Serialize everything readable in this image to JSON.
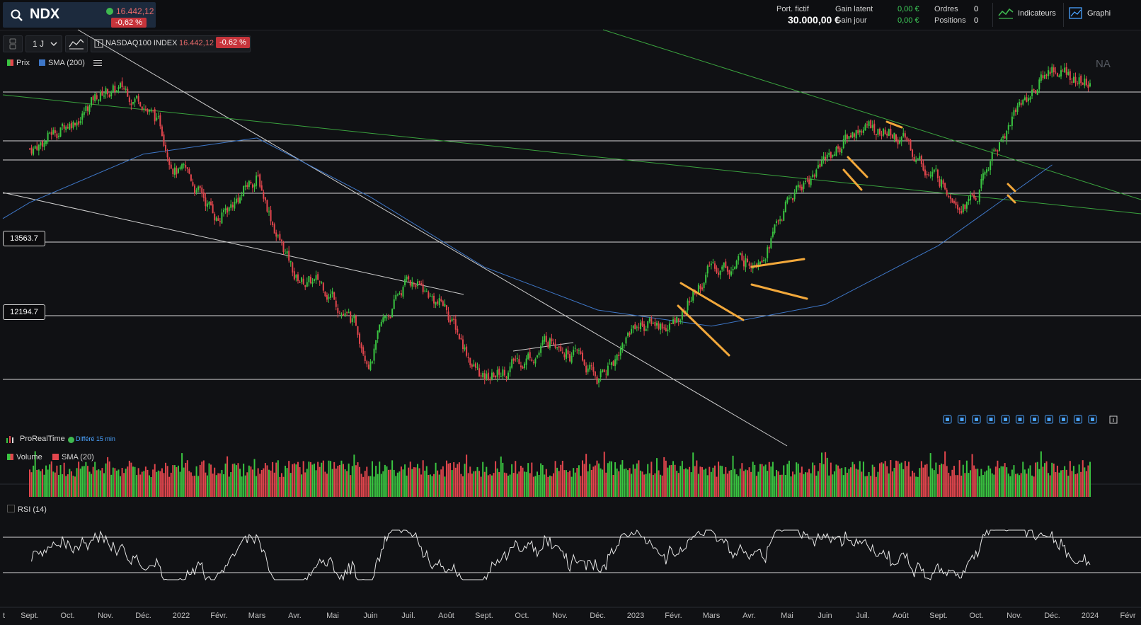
{
  "header": {
    "symbol": "NDX",
    "price": "16.442,12",
    "change": "-0,62 %",
    "portfolio_label": "Port. fictif",
    "portfolio_value": "30.000,00 €",
    "gain_latent_label": "Gain latent",
    "gain_latent_value": "0,00 €",
    "gain_jour_label": "Gain jour",
    "gain_jour_value": "0,00 €",
    "ordres_label": "Ordres",
    "ordres_value": "0",
    "positions_label": "Positions",
    "positions_value": "0",
    "indicators_label": "Indicateurs",
    "graph_label": "Graphi"
  },
  "toolbar": {
    "timeframe": "1 J",
    "instrument_name": "NASDAQ100 INDEX",
    "instrument_price": "16.442,12",
    "instrument_change": "-0.62 %"
  },
  "legends": {
    "price": "Prix",
    "sma200": "SMA (200)",
    "volume": "Volume",
    "sma20": "SMA (20)",
    "rsi": "RSI (14)",
    "corner_text": "NA"
  },
  "provider": {
    "name": "ProRealTime",
    "delay": "Différé 15 min"
  },
  "price_labels": [
    "13563.7",
    "12194.7"
  ],
  "x_ticks": [
    "t",
    "Sept.",
    "Oct.",
    "Nov.",
    "Déc.",
    "2022",
    "Févr.",
    "Mars",
    "Avr.",
    "Mai",
    "Juin",
    "Juil.",
    "Août",
    "Sept.",
    "Oct.",
    "Nov.",
    "Déc.",
    "2023",
    "Févr.",
    "Mars",
    "Avr.",
    "Mai",
    "Juin",
    "Juil.",
    "Août",
    "Sept.",
    "Oct.",
    "Nov.",
    "Déc.",
    "2024",
    "Févr"
  ],
  "colors": {
    "up": "#3ac441",
    "down": "#e2464d",
    "sma200": "#3e77c8",
    "trend_green": "#3aa23e",
    "pattern": "#f2a83b",
    "accent_red": "#c7343b"
  },
  "chart_data": {
    "type": "candlestick",
    "title": "NASDAQ100 INDEX",
    "period": "1 J",
    "last_close": 16442.12,
    "horizontal_levels": [
      13563.7,
      12194.7
    ],
    "closes_monthly_approx": [
      {
        "x": "2021-09",
        "y": 15300
      },
      {
        "x": "2021-10",
        "y": 15800
      },
      {
        "x": "2021-11",
        "y": 16400
      },
      {
        "x": "2021-12",
        "y": 16300
      },
      {
        "x": "2022-01",
        "y": 14900
      },
      {
        "x": "2022-02",
        "y": 14000
      },
      {
        "x": "2022-03",
        "y": 14800
      },
      {
        "x": "2022-04",
        "y": 12900
      },
      {
        "x": "2022-05",
        "y": 12650
      },
      {
        "x": "2022-06",
        "y": 11500
      },
      {
        "x": "2022-07",
        "y": 12900
      },
      {
        "x": "2022-08",
        "y": 12300
      },
      {
        "x": "2022-09",
        "y": 10950
      },
      {
        "x": "2022-10",
        "y": 11400
      },
      {
        "x": "2022-11",
        "y": 11900
      },
      {
        "x": "2022-12",
        "y": 10950
      },
      {
        "x": "2023-01",
        "y": 12100
      },
      {
        "x": "2023-02",
        "y": 12050
      },
      {
        "x": "2023-03",
        "y": 13100
      },
      {
        "x": "2023-04",
        "y": 13250
      },
      {
        "x": "2023-05",
        "y": 14250
      },
      {
        "x": "2023-06",
        "y": 15150
      },
      {
        "x": "2023-07",
        "y": 15750
      },
      {
        "x": "2023-08",
        "y": 15500
      },
      {
        "x": "2023-09",
        "y": 14700
      },
      {
        "x": "2023-10",
        "y": 14400
      },
      {
        "x": "2023-11",
        "y": 16000
      },
      {
        "x": "2023-12",
        "y": 16800
      },
      {
        "x": "2024-01",
        "y": 16442
      }
    ],
    "sma200_monthly_approx": [
      {
        "x": "2021-09",
        "y": 14300
      },
      {
        "x": "2021-12",
        "y": 15200
      },
      {
        "x": "2022-03",
        "y": 15500
      },
      {
        "x": "2022-06",
        "y": 14400
      },
      {
        "x": "2022-09",
        "y": 13100
      },
      {
        "x": "2022-12",
        "y": 12300
      },
      {
        "x": "2023-03",
        "y": 12000
      },
      {
        "x": "2023-06",
        "y": 12400
      },
      {
        "x": "2023-09",
        "y": 13500
      },
      {
        "x": "2023-12",
        "y": 15000
      }
    ],
    "rsi_levels": [
      70,
      30
    ],
    "series": [
      {
        "name": "Prix"
      },
      {
        "name": "SMA (200)"
      },
      {
        "name": "Volume"
      },
      {
        "name": "SMA (20)"
      },
      {
        "name": "RSI (14)"
      }
    ]
  }
}
